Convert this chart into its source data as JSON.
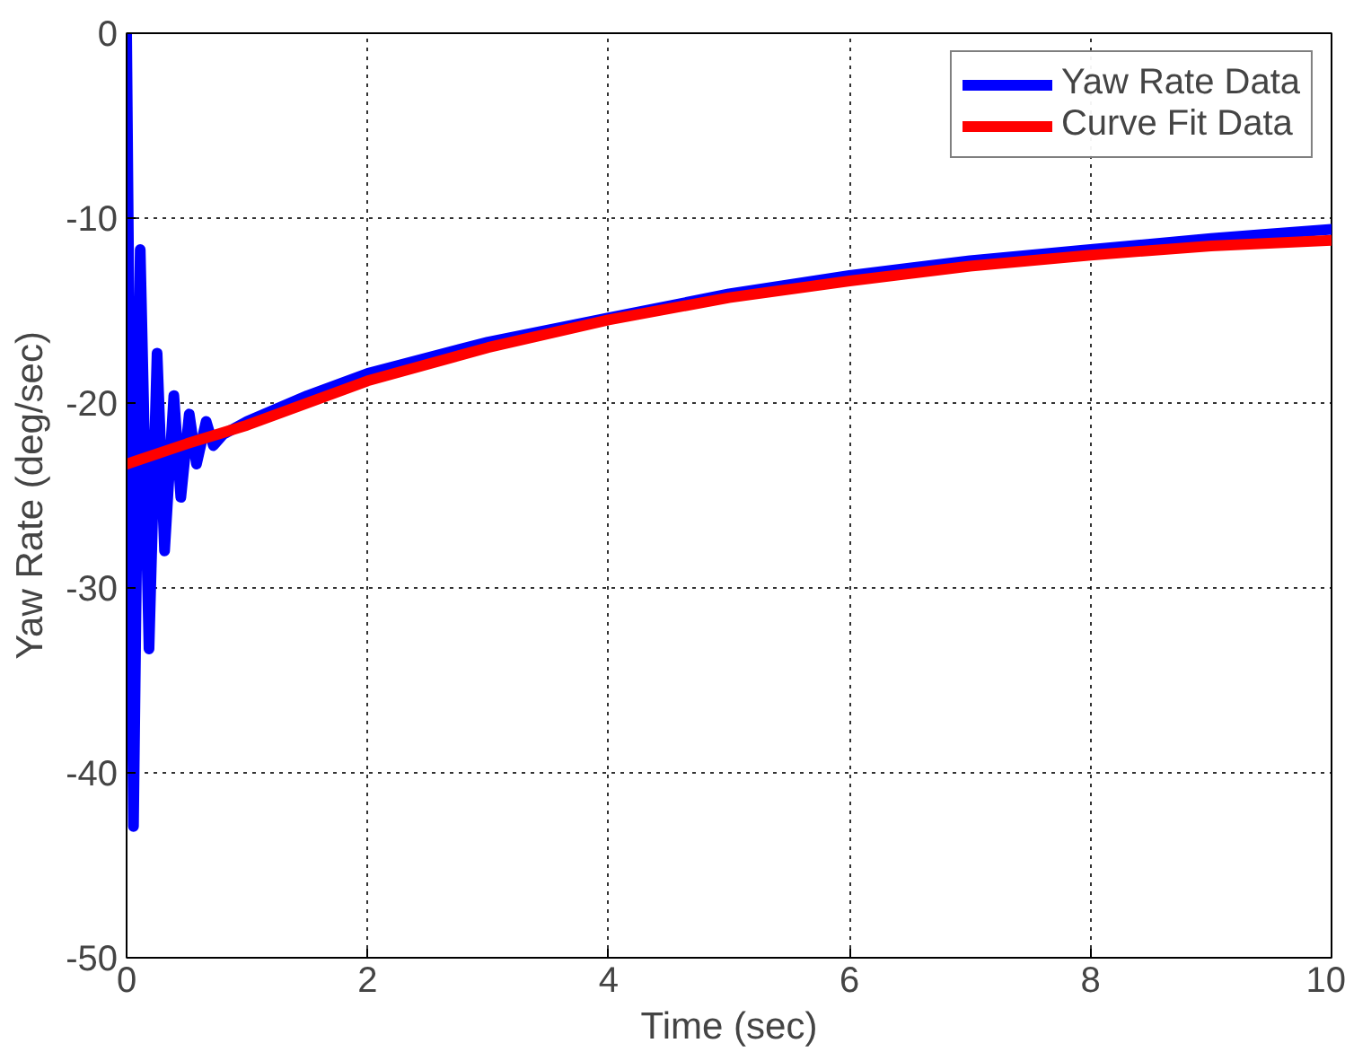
{
  "chart_data": {
    "type": "line",
    "xlabel": "Time (sec)",
    "ylabel": "Yaw Rate (deg/sec)",
    "xlim": [
      0,
      10
    ],
    "ylim": [
      -50,
      0
    ],
    "xticks": [
      0,
      2,
      4,
      6,
      8,
      10
    ],
    "yticks": [
      -50,
      -40,
      -30,
      -20,
      -10,
      0
    ],
    "grid": true,
    "legend": "top right",
    "line_style": "solid",
    "marker": "none",
    "series": [
      {
        "name": "Yaw Rate Data",
        "color": "#0000ff",
        "x": [
          0,
          0.057,
          0.113,
          0.186,
          0.253,
          0.315,
          0.392,
          0.45,
          0.52,
          0.58,
          0.66,
          0.72,
          0.8,
          1,
          1.5,
          2,
          3,
          4,
          5,
          6,
          7,
          8,
          9,
          10
        ],
        "values": [
          0,
          -42.9,
          -11.7,
          -33.3,
          -17.3,
          -28.0,
          -19.6,
          -25.1,
          -20.6,
          -23.3,
          -21.0,
          -22.3,
          -21.7,
          -21.0,
          -19.6,
          -18.4,
          -16.7,
          -15.4,
          -14.1,
          -13.1,
          -12.3,
          -11.7,
          -11.1,
          -10.6
        ]
      },
      {
        "name": "Curve Fit Data",
        "color": "#ff0000",
        "x": [
          0,
          0.5,
          1,
          2,
          3,
          4,
          5,
          6,
          7,
          8,
          9,
          10
        ],
        "values": [
          -23.3,
          -22.2,
          -21.2,
          -18.8,
          -17.0,
          -15.5,
          -14.3,
          -13.4,
          -12.6,
          -12.0,
          -11.5,
          -11.2
        ]
      }
    ]
  }
}
